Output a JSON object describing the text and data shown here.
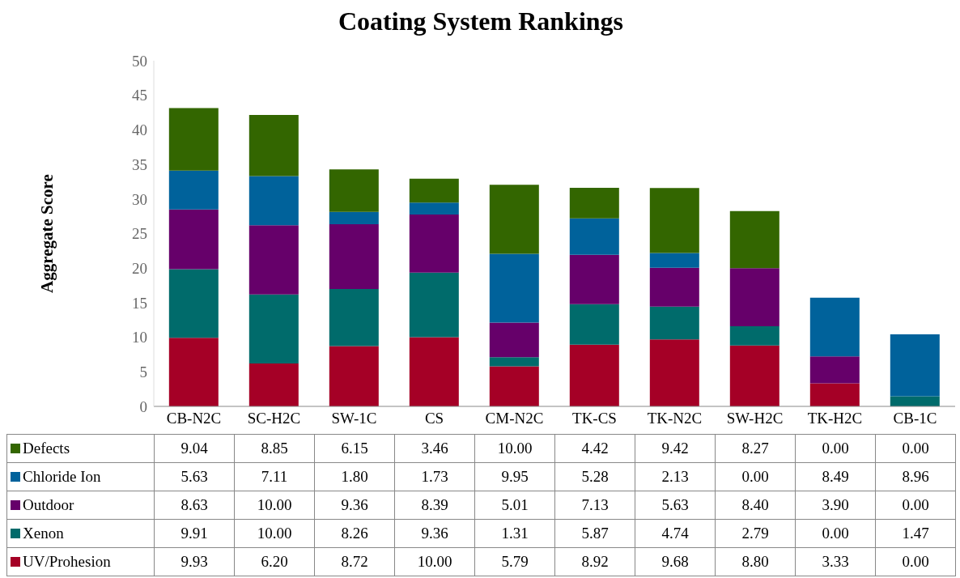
{
  "chart_data": {
    "type": "bar",
    "title": "Coating System Rankings",
    "ylabel": "Aggregate Score",
    "categories": [
      "CB-N2C",
      "SC-H2C",
      "SW-1C",
      "CS",
      "CM-N2C",
      "TK-CS",
      "TK-N2C",
      "SW-H2C",
      "TK-H2C",
      "CB-1C"
    ],
    "stacked": true,
    "ylim": [
      0,
      50
    ],
    "yticks": [
      0,
      5,
      10,
      15,
      20,
      25,
      30,
      35,
      40,
      45,
      50
    ],
    "grid": false,
    "legend": "bottom",
    "series": [
      {
        "name": "UV/Prohesion",
        "color": "#a50026",
        "values": [
          9.93,
          6.2,
          8.72,
          10.0,
          5.79,
          8.92,
          9.68,
          8.8,
          3.33,
          0.0
        ],
        "value_labels": [
          "9.93",
          "6.20",
          "8.72",
          "10.00",
          "5.79",
          "8.92",
          "9.68",
          "8.80",
          "3.33",
          "0.00"
        ]
      },
      {
        "name": "Xenon",
        "color": "#006b6b",
        "values": [
          9.91,
          10.0,
          8.26,
          9.36,
          1.31,
          5.87,
          4.74,
          2.79,
          0.0,
          1.47
        ],
        "value_labels": [
          "9.91",
          "10.00",
          "8.26",
          "9.36",
          "1.31",
          "5.87",
          "4.74",
          "2.79",
          "0.00",
          "1.47"
        ]
      },
      {
        "name": "Outdoor",
        "color": "#66006a",
        "values": [
          8.63,
          10.0,
          9.36,
          8.39,
          5.01,
          7.13,
          5.63,
          8.4,
          3.9,
          0.0
        ],
        "value_labels": [
          "8.63",
          "10.00",
          "9.36",
          "8.39",
          "5.01",
          "7.13",
          "5.63",
          "8.40",
          "3.90",
          "0.00"
        ]
      },
      {
        "name": "Chloride Ion",
        "color": "#00629b",
        "values": [
          5.63,
          7.11,
          1.8,
          1.73,
          9.95,
          5.28,
          2.13,
          0.0,
          8.49,
          8.96
        ],
        "value_labels": [
          "5.63",
          "7.11",
          "1.80",
          "1.73",
          "9.95",
          "5.28",
          "2.13",
          "0.00",
          "8.49",
          "8.96"
        ]
      },
      {
        "name": "Defects",
        "color": "#336600",
        "values": [
          9.04,
          8.85,
          6.15,
          3.46,
          10.0,
          4.42,
          9.42,
          8.27,
          0.0,
          0.0
        ],
        "value_labels": [
          "9.04",
          "8.85",
          "6.15",
          "3.46",
          "10.00",
          "4.42",
          "9.42",
          "8.27",
          "0.00",
          "0.00"
        ]
      }
    ]
  }
}
